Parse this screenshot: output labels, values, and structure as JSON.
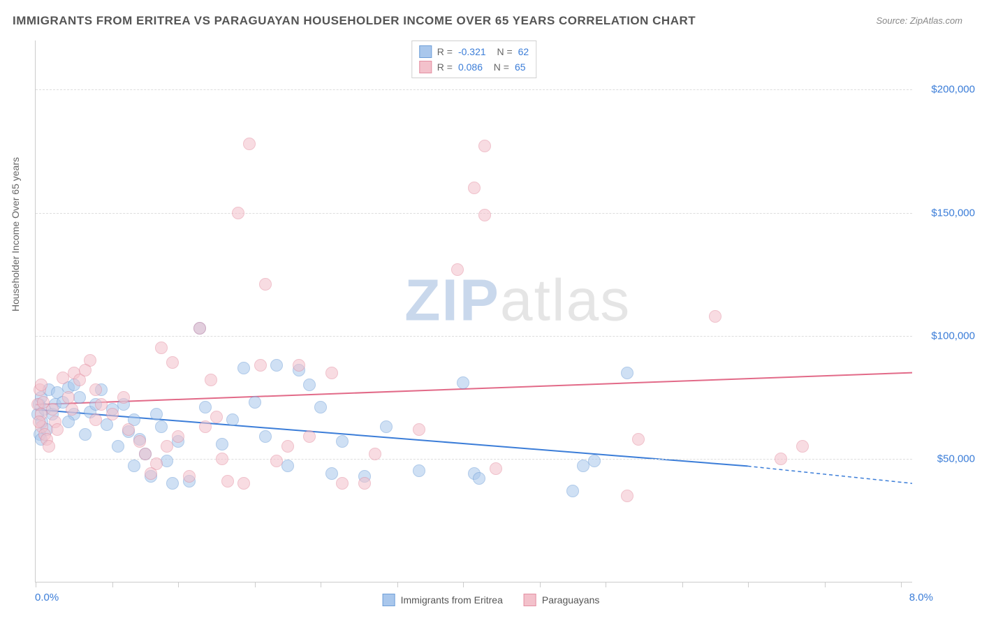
{
  "title": "IMMIGRANTS FROM ERITREA VS PARAGUAYAN HOUSEHOLDER INCOME OVER 65 YEARS CORRELATION CHART",
  "source": "Source: ZipAtlas.com",
  "ylabel": "Householder Income Over 65 years",
  "watermark": {
    "part1": "ZIP",
    "part2": "atlas"
  },
  "chart": {
    "type": "scatter",
    "xlim": [
      0,
      8
    ],
    "ylim": [
      0,
      220000
    ],
    "xticks": [
      0,
      0.7,
      1.3,
      2.0,
      2.6,
      3.3,
      3.9,
      4.6,
      5.2,
      5.9,
      6.5,
      7.2,
      7.9
    ],
    "xtick_labels": {
      "0": "0.0%",
      "8": "8.0%"
    },
    "yticks": [
      50000,
      100000,
      150000,
      200000
    ],
    "ytick_labels": [
      "$50,000",
      "$100,000",
      "$150,000",
      "$200,000"
    ],
    "background_color": "#ffffff",
    "grid_color": "#dddddd",
    "axis_color": "#cccccc",
    "tick_label_color": "#3b7dd8",
    "marker_radius": 9,
    "marker_opacity": 0.55,
    "line_width": 2
  },
  "series": [
    {
      "name": "Immigrants from Eritrea",
      "color_fill": "#a9c7ec",
      "color_stroke": "#6f9fd8",
      "line_color": "#3b7dd8",
      "R": "-0.321",
      "N": "62",
      "trend": {
        "x1": 0,
        "y1": 70000,
        "x2": 6.5,
        "y2": 47000,
        "extend_x": 8,
        "extend_y": 40000
      },
      "points": [
        [
          0.02,
          68000
        ],
        [
          0.03,
          72000
        ],
        [
          0.04,
          60000
        ],
        [
          0.05,
          75000
        ],
        [
          0.06,
          65000
        ],
        [
          0.08,
          70000
        ],
        [
          0.1,
          62000
        ],
        [
          0.12,
          78000
        ],
        [
          0.15,
          68000
        ],
        [
          0.18,
          72000
        ],
        [
          0.2,
          77000
        ],
        [
          0.25,
          73000
        ],
        [
          0.3,
          79000
        ],
        [
          0.35,
          68000
        ],
        [
          0.4,
          75000
        ],
        [
          0.45,
          60000
        ],
        [
          0.5,
          69000
        ],
        [
          0.55,
          72000
        ],
        [
          0.6,
          78000
        ],
        [
          0.65,
          64000
        ],
        [
          0.7,
          70000
        ],
        [
          0.75,
          55000
        ],
        [
          0.8,
          72000
        ],
        [
          0.85,
          61000
        ],
        [
          0.9,
          47000
        ],
        [
          0.95,
          58000
        ],
        [
          1.0,
          52000
        ],
        [
          1.05,
          43000
        ],
        [
          1.1,
          68000
        ],
        [
          1.15,
          63000
        ],
        [
          1.2,
          49000
        ],
        [
          1.3,
          57000
        ],
        [
          1.4,
          41000
        ],
        [
          1.5,
          103000
        ],
        [
          1.55,
          71000
        ],
        [
          1.7,
          56000
        ],
        [
          1.8,
          66000
        ],
        [
          1.9,
          87000
        ],
        [
          2.0,
          73000
        ],
        [
          2.1,
          59000
        ],
        [
          2.2,
          88000
        ],
        [
          2.3,
          47000
        ],
        [
          2.5,
          80000
        ],
        [
          2.6,
          71000
        ],
        [
          2.7,
          44000
        ],
        [
          2.8,
          57000
        ],
        [
          3.0,
          43000
        ],
        [
          3.2,
          63000
        ],
        [
          3.5,
          45000
        ],
        [
          3.9,
          81000
        ],
        [
          4.0,
          44000
        ],
        [
          4.05,
          42000
        ],
        [
          4.9,
          37000
        ],
        [
          5.0,
          47000
        ],
        [
          5.1,
          49000
        ],
        [
          5.4,
          85000
        ],
        [
          1.25,
          40000
        ],
        [
          0.9,
          66000
        ],
        [
          0.3,
          65000
        ],
        [
          0.05,
          58000
        ],
        [
          0.35,
          80000
        ],
        [
          2.4,
          86000
        ]
      ]
    },
    {
      "name": "Paraguayans",
      "color_fill": "#f3c1cb",
      "color_stroke": "#e48fa2",
      "line_color": "#e26a88",
      "R": "0.086",
      "N": "65",
      "trend": {
        "x1": 0,
        "y1": 72000,
        "x2": 8,
        "y2": 85000
      },
      "points": [
        [
          0.02,
          72000
        ],
        [
          0.04,
          78000
        ],
        [
          0.05,
          68000
        ],
        [
          0.06,
          63000
        ],
        [
          0.08,
          60000
        ],
        [
          0.1,
          58000
        ],
        [
          0.12,
          55000
        ],
        [
          0.15,
          70000
        ],
        [
          0.18,
          65000
        ],
        [
          0.2,
          62000
        ],
        [
          0.25,
          83000
        ],
        [
          0.3,
          75000
        ],
        [
          0.35,
          85000
        ],
        [
          0.4,
          82000
        ],
        [
          0.5,
          90000
        ],
        [
          0.55,
          78000
        ],
        [
          0.6,
          72000
        ],
        [
          0.7,
          68000
        ],
        [
          0.8,
          75000
        ],
        [
          0.85,
          62000
        ],
        [
          0.95,
          57000
        ],
        [
          1.0,
          52000
        ],
        [
          1.1,
          48000
        ],
        [
          1.15,
          95000
        ],
        [
          1.2,
          55000
        ],
        [
          1.25,
          89000
        ],
        [
          1.3,
          59000
        ],
        [
          1.4,
          43000
        ],
        [
          1.5,
          103000
        ],
        [
          1.55,
          63000
        ],
        [
          1.6,
          82000
        ],
        [
          1.7,
          50000
        ],
        [
          1.75,
          41000
        ],
        [
          1.85,
          150000
        ],
        [
          1.9,
          40000
        ],
        [
          1.95,
          178000
        ],
        [
          2.05,
          88000
        ],
        [
          2.1,
          121000
        ],
        [
          2.2,
          49000
        ],
        [
          2.3,
          55000
        ],
        [
          2.4,
          88000
        ],
        [
          2.5,
          59000
        ],
        [
          2.7,
          85000
        ],
        [
          2.8,
          40000
        ],
        [
          3.0,
          40000
        ],
        [
          3.1,
          52000
        ],
        [
          3.5,
          62000
        ],
        [
          3.85,
          127000
        ],
        [
          4.0,
          160000
        ],
        [
          4.1,
          149000
        ],
        [
          4.1,
          177000
        ],
        [
          4.2,
          46000
        ],
        [
          5.4,
          35000
        ],
        [
          5.5,
          58000
        ],
        [
          6.2,
          108000
        ],
        [
          6.8,
          50000
        ],
        [
          7.0,
          55000
        ],
        [
          0.05,
          80000
        ],
        [
          0.45,
          86000
        ],
        [
          0.03,
          65000
        ],
        [
          0.07,
          73000
        ],
        [
          0.55,
          66000
        ],
        [
          1.05,
          44000
        ],
        [
          1.65,
          67000
        ],
        [
          0.33,
          70000
        ]
      ]
    }
  ],
  "legend_bottom": {
    "series1_label": "Immigrants from Eritrea",
    "series2_label": "Paraguayans"
  }
}
